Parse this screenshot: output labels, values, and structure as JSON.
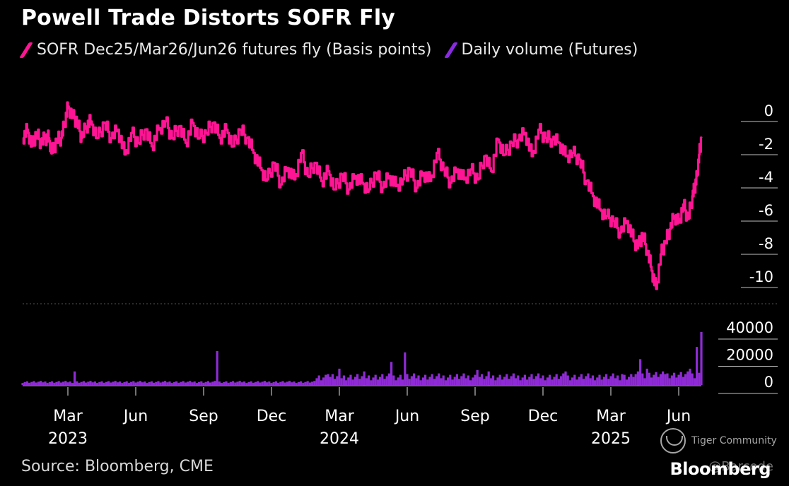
{
  "title": "Powell Trade Distorts SOFR Fly",
  "legend": [
    {
      "label": "SOFR Dec25/Mar26/Jun26 futures fly (Basis points)",
      "color": "#ff1493"
    },
    {
      "label": "Daily volume (Futures)",
      "color": "#8a2be2"
    }
  ],
  "source": "Source: Bloomberg, CME",
  "brand": "Bloomberg",
  "watermark": {
    "community": "Tiger Community",
    "handle": "@Barcode"
  },
  "colors": {
    "fly": "#ff1493",
    "volume": "#8f2bd6",
    "axis": "#bfbfbf",
    "background": "#000000"
  },
  "chart_data": [
    {
      "type": "line",
      "name": "SOFR Dec25/Mar26/Jun26 futures fly",
      "unit": "Basis points",
      "ylim": [
        0,
        -10
      ],
      "yticks": [
        "0",
        "-2",
        "-4",
        "-6",
        "-8",
        "-10"
      ],
      "x_range": [
        "2023-01",
        "2025-06"
      ],
      "x": [
        0,
        0.2,
        0.4,
        0.6,
        0.8,
        1.0,
        1.15,
        1.3,
        1.5,
        1.7,
        1.85,
        2.0,
        2.2,
        2.4,
        2.6,
        2.8,
        3.0,
        3.3,
        3.6,
        3.9,
        4.2,
        4.5,
        4.8,
        5.1,
        5.4,
        5.7,
        6.0,
        6.3,
        6.6,
        6.9,
        7.2,
        7.5,
        7.8,
        8.1,
        8.4,
        8.7,
        9.0,
        9.3,
        9.6,
        9.9,
        10.2,
        10.5,
        10.8,
        11.1,
        11.4,
        11.7,
        12.0,
        12.3,
        12.6,
        12.9,
        13.2,
        13.5,
        13.8,
        14.1,
        14.4,
        14.7,
        15.0,
        15.3,
        15.6,
        15.9,
        16.2,
        16.5,
        16.8,
        17.1,
        17.4,
        17.7,
        18.0,
        18.3,
        18.6,
        18.9,
        19.2,
        19.5,
        19.8,
        20.1,
        20.4,
        20.7,
        21.0,
        21.3,
        21.6,
        21.9,
        22.2,
        22.5,
        22.8,
        23.1,
        23.4,
        23.7,
        24.0,
        24.3,
        24.6,
        24.9,
        25.2,
        25.5,
        25.8,
        26.1,
        26.4,
        26.7,
        27.0,
        27.2,
        27.4,
        27.6,
        27.8,
        28.0,
        28.2,
        28.4,
        28.6,
        28.8,
        29.0,
        29.2,
        29.4,
        29.6,
        29.7,
        29.8,
        29.9,
        30.0
      ],
      "y": [
        -1.5,
        -1.0,
        -2.0,
        -1.2,
        -1.8,
        -1.5,
        -1.5,
        -2.4,
        -1.6,
        -1.5,
        -0.6,
        0.4,
        -0.2,
        -0.5,
        -1.5,
        -0.8,
        -0.5,
        -1.5,
        -0.6,
        -1.5,
        -1.0,
        -2.5,
        -1.2,
        -1.8,
        -1.0,
        -2.0,
        -1.0,
        -0.5,
        -1.5,
        -0.8,
        -1.8,
        -0.6,
        -1.5,
        -1.2,
        -0.6,
        -1.5,
        -1.0,
        -2.0,
        -1.0,
        -1.5,
        -2.4,
        -3.3,
        -4.0,
        -3.0,
        -4.3,
        -3.3,
        -4.0,
        -2.4,
        -3.8,
        -3.0,
        -4.1,
        -3.5,
        -4.6,
        -3.7,
        -4.6,
        -3.8,
        -4.2,
        -4.6,
        -3.6,
        -4.5,
        -3.8,
        -4.4,
        -4.0,
        -3.4,
        -4.5,
        -3.6,
        -4.1,
        -2.4,
        -3.4,
        -4.2,
        -3.4,
        -4.0,
        -3.4,
        -4.0,
        -2.6,
        -3.5,
        -1.6,
        -2.5,
        -1.8,
        -1.6,
        -1.2,
        -2.6,
        -1.0,
        -1.5,
        -1.6,
        -1.8,
        -2.6,
        -2.4,
        -2.8,
        -4.1,
        -5.0,
        -5.8,
        -6.2,
        -6.5,
        -7.2,
        -6.5,
        -7.7,
        -8.0,
        -7.3,
        -8.3,
        -9.5,
        -10.6,
        -8.5,
        -7.8,
        -7.0,
        -6.2,
        -6.6,
        -5.5,
        -6.4,
        -5.0,
        -4.5,
        -3.8,
        -2.5,
        -1.5
      ]
    },
    {
      "type": "bar",
      "name": "Daily volume (Futures)",
      "unit": "Futures",
      "ylim": [
        0,
        40000
      ],
      "yticks": [
        "0",
        "20000",
        "40000"
      ],
      "x_range": [
        "2023-01",
        "2025-06"
      ],
      "spikes": [
        {
          "x": 2.3,
          "value": 10000
        },
        {
          "x": 8.6,
          "value": 25000
        },
        {
          "x": 13.5,
          "value": 8000
        },
        {
          "x": 14.0,
          "value": 12000
        },
        {
          "x": 15.1,
          "value": 10000
        },
        {
          "x": 16.3,
          "value": 17000
        },
        {
          "x": 16.9,
          "value": 24000
        },
        {
          "x": 20.1,
          "value": 11000
        },
        {
          "x": 20.6,
          "value": 10000
        },
        {
          "x": 24.0,
          "value": 10000
        },
        {
          "x": 26.5,
          "value": 8000
        },
        {
          "x": 27.3,
          "value": 19000
        },
        {
          "x": 27.6,
          "value": 12000
        },
        {
          "x": 28.4,
          "value": 8000
        },
        {
          "x": 29.5,
          "value": 12000
        },
        {
          "x": 29.8,
          "value": 28000
        },
        {
          "x": 30.0,
          "value": 39000
        }
      ]
    },
    {
      "type": "axis",
      "xticks": [
        "Mar",
        "Jun",
        "Sep",
        "Dec",
        "Mar",
        "Jun",
        "Sep",
        "Dec",
        "Mar",
        "Jun"
      ],
      "xtick_months": [
        2,
        5,
        8,
        11,
        14,
        17,
        20,
        23,
        26,
        29
      ],
      "years": [
        {
          "label": "2023",
          "month": 2
        },
        {
          "label": "2024",
          "month": 14
        },
        {
          "label": "2025",
          "month": 26
        }
      ]
    }
  ]
}
